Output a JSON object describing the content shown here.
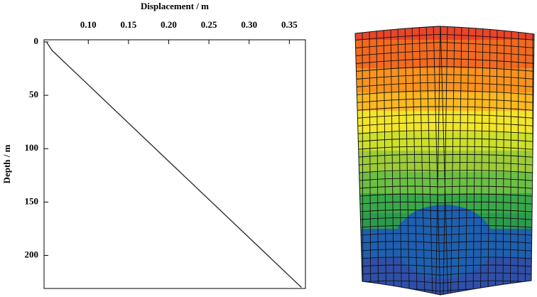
{
  "chart_data": {
    "type": "line",
    "x_label": "Displacement / m",
    "y_label": "Depth / m",
    "x": [
      0.048,
      0.055,
      0.365
    ],
    "values": [
      0,
      8,
      230
    ],
    "color": "#333333",
    "xlim": [
      0.045,
      0.37
    ],
    "xticks": [
      {
        "value": 0.1,
        "label": "0.10"
      },
      {
        "value": 0.15,
        "label": "0.15"
      },
      {
        "value": 0.2,
        "label": "0.20"
      },
      {
        "value": 0.25,
        "label": "0.25"
      },
      {
        "value": 0.3,
        "label": "0.30"
      },
      {
        "value": 0.35,
        "label": "0.35"
      }
    ],
    "ylim": [
      -2,
      231
    ],
    "yticks": [
      0,
      50,
      100,
      150,
      200
    ],
    "y_inverted": true
  }
}
